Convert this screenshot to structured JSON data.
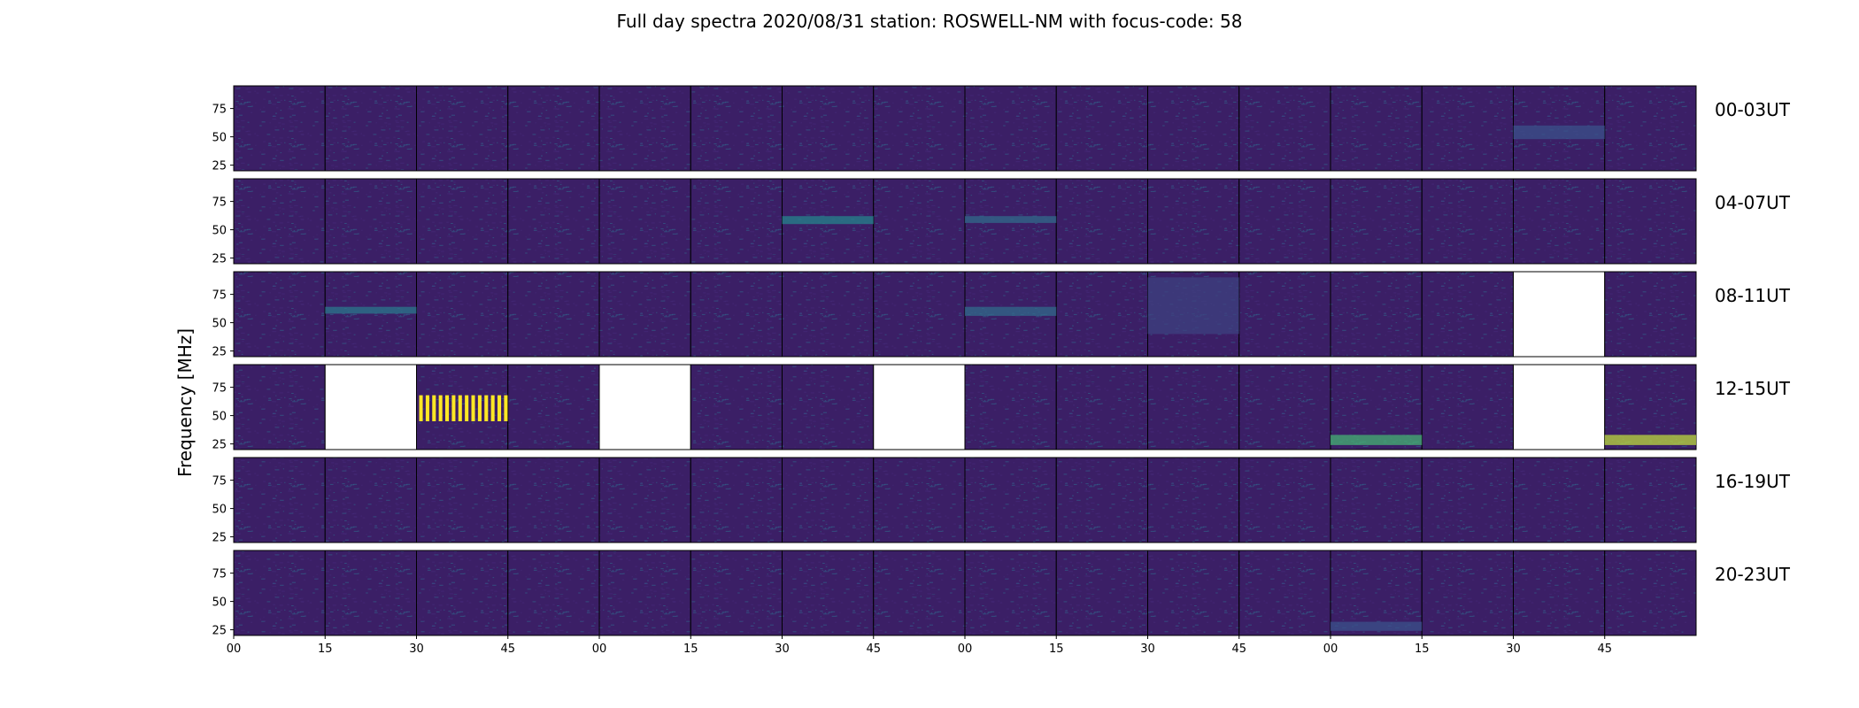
{
  "chart_data": {
    "type": "heatmap",
    "title": "Full day spectra 2020/08/31 station: ROSWELL-NM with focus-code: 58",
    "ylabel": "Frequency [MHz]",
    "xlabel": "",
    "ylim": [
      20,
      95
    ],
    "y_ticks": [
      "25",
      "50",
      "75"
    ],
    "x_ticks": [
      "00",
      "15",
      "30",
      "45",
      "00",
      "15",
      "30",
      "45",
      "00",
      "15",
      "30",
      "45",
      "00",
      "15",
      "30",
      "45"
    ],
    "row_labels": [
      "00-03UT",
      "04-07UT",
      "08-11UT",
      "12-15UT",
      "16-19UT",
      "20-23UT"
    ],
    "panels_per_row": 16,
    "colormap": "viridis",
    "background_color": "#3b1f66",
    "missing_panels": [
      {
        "row": 2,
        "col": 14
      },
      {
        "row": 3,
        "col": 1
      },
      {
        "row": 3,
        "col": 4
      },
      {
        "row": 3,
        "col": 7
      },
      {
        "row": 3,
        "col": 14
      }
    ],
    "features": [
      {
        "row": 3,
        "col": 2,
        "kind": "bursts",
        "ymin": 45,
        "ymax": 68,
        "intensity": 1.0
      },
      {
        "row": 3,
        "col": 12,
        "kind": "band",
        "ymin": 24,
        "ymax": 33,
        "intensity": 0.65
      },
      {
        "row": 3,
        "col": 15,
        "kind": "band",
        "ymin": 24,
        "ymax": 33,
        "intensity": 0.9
      },
      {
        "row": 1,
        "col": 6,
        "kind": "band",
        "ymin": 55,
        "ymax": 62,
        "intensity": 0.45
      },
      {
        "row": 2,
        "col": 1,
        "kind": "band",
        "ymin": 58,
        "ymax": 64,
        "intensity": 0.4
      },
      {
        "row": 2,
        "col": 8,
        "kind": "band",
        "ymin": 56,
        "ymax": 64,
        "intensity": 0.35
      },
      {
        "row": 1,
        "col": 8,
        "kind": "band",
        "ymin": 56,
        "ymax": 62,
        "intensity": 0.35
      },
      {
        "row": 0,
        "col": 14,
        "kind": "band",
        "ymin": 48,
        "ymax": 60,
        "intensity": 0.25
      },
      {
        "row": 2,
        "col": 10,
        "kind": "band",
        "ymin": 40,
        "ymax": 90,
        "intensity": 0.2
      },
      {
        "row": 5,
        "col": 12,
        "kind": "band",
        "ymin": 24,
        "ymax": 32,
        "intensity": 0.25
      }
    ]
  }
}
